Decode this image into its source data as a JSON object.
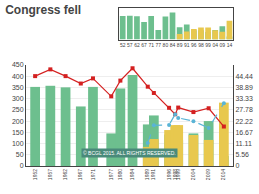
{
  "chart_data": [
    {
      "type": "bar",
      "title": "Congress fell",
      "x": [
        1952,
        1957,
        1962,
        1967,
        1971,
        1977,
        1980,
        1984,
        1989,
        1991,
        1996,
        1998,
        1999,
        2004,
        2009,
        2014
      ],
      "xlim": [
        1949,
        2017
      ],
      "xticks": [
        1952,
        1957,
        1962,
        1967,
        1971,
        1977,
        1980,
        1984,
        1989,
        1991,
        1996,
        1998,
        1999,
        2004,
        2009,
        2014
      ],
      "ylim": [
        0,
        450
      ],
      "yticks": [
        0,
        50,
        100,
        150,
        200,
        250,
        300,
        350,
        400,
        450
      ],
      "y2lim": [
        0,
        50
      ],
      "y2ticks": [
        0,
        5.56,
        11.11,
        16.67,
        22.22,
        27.78,
        33.33,
        38.89,
        44.44
      ],
      "grid": true,
      "stacked": false,
      "annotations": [
        {
          "text": "© BCGL 2015. ALL RIGHTS RESERVED."
        }
      ],
      "series": [
        {
          "type": "bar",
          "color": "#6dbf8e",
          "values": [
            352,
            357,
            350,
            265,
            352,
            145,
            345,
            405,
            185,
            225,
            140,
            140,
            115,
            145,
            200,
            45
          ]
        },
        {
          "type": "bar",
          "color": "#e8c84e",
          "values": [
            null,
            null,
            null,
            null,
            null,
            null,
            null,
            null,
            85,
            120,
            160,
            182,
            182,
            138,
            116,
            282
          ]
        },
        {
          "type": "line",
          "axis": "y2",
          "color": "#d42020",
          "marker": "square",
          "line_style": "solid",
          "values": [
            44.44,
            47.78,
            44.44,
            40.78,
            43.33,
            34.44,
            42.22,
            48.33,
            39.22,
            36.11,
            28.78,
            25.59,
            28.89,
            26.67,
            28.55,
            19.52
          ]
        },
        {
          "type": "line",
          "axis": "y2",
          "color": "#5ab4d6",
          "marker": "circle",
          "line_style": "dashed",
          "values": [
            null,
            null,
            null,
            null,
            null,
            null,
            null,
            null,
            11.36,
            20.11,
            20.3,
            25.59,
            23.78,
            22.16,
            18.8,
            31.04
          ]
        }
      ]
    },
    {
      "type": "bar",
      "categories": [
        "52",
        "57",
        "62",
        "67",
        "71",
        "77",
        "80",
        "84",
        "89",
        "91",
        "96",
        "98",
        "99",
        "04",
        "09",
        "14"
      ],
      "ylim": [
        0,
        472.5
      ],
      "tick_labels": "x",
      "stacked": false,
      "series": [
        {
          "type": "bar",
          "color": "#6dbf8e",
          "values": [
            352,
            357,
            350,
            265,
            352,
            145,
            345,
            405,
            185,
            225,
            140,
            140,
            115,
            145,
            200,
            45
          ]
        },
        {
          "type": "bar",
          "color": "#e8c84e",
          "values": [
            null,
            null,
            null,
            null,
            null,
            null,
            null,
            null,
            85,
            120,
            160,
            182,
            182,
            138,
            116,
            282
          ]
        }
      ]
    }
  ]
}
